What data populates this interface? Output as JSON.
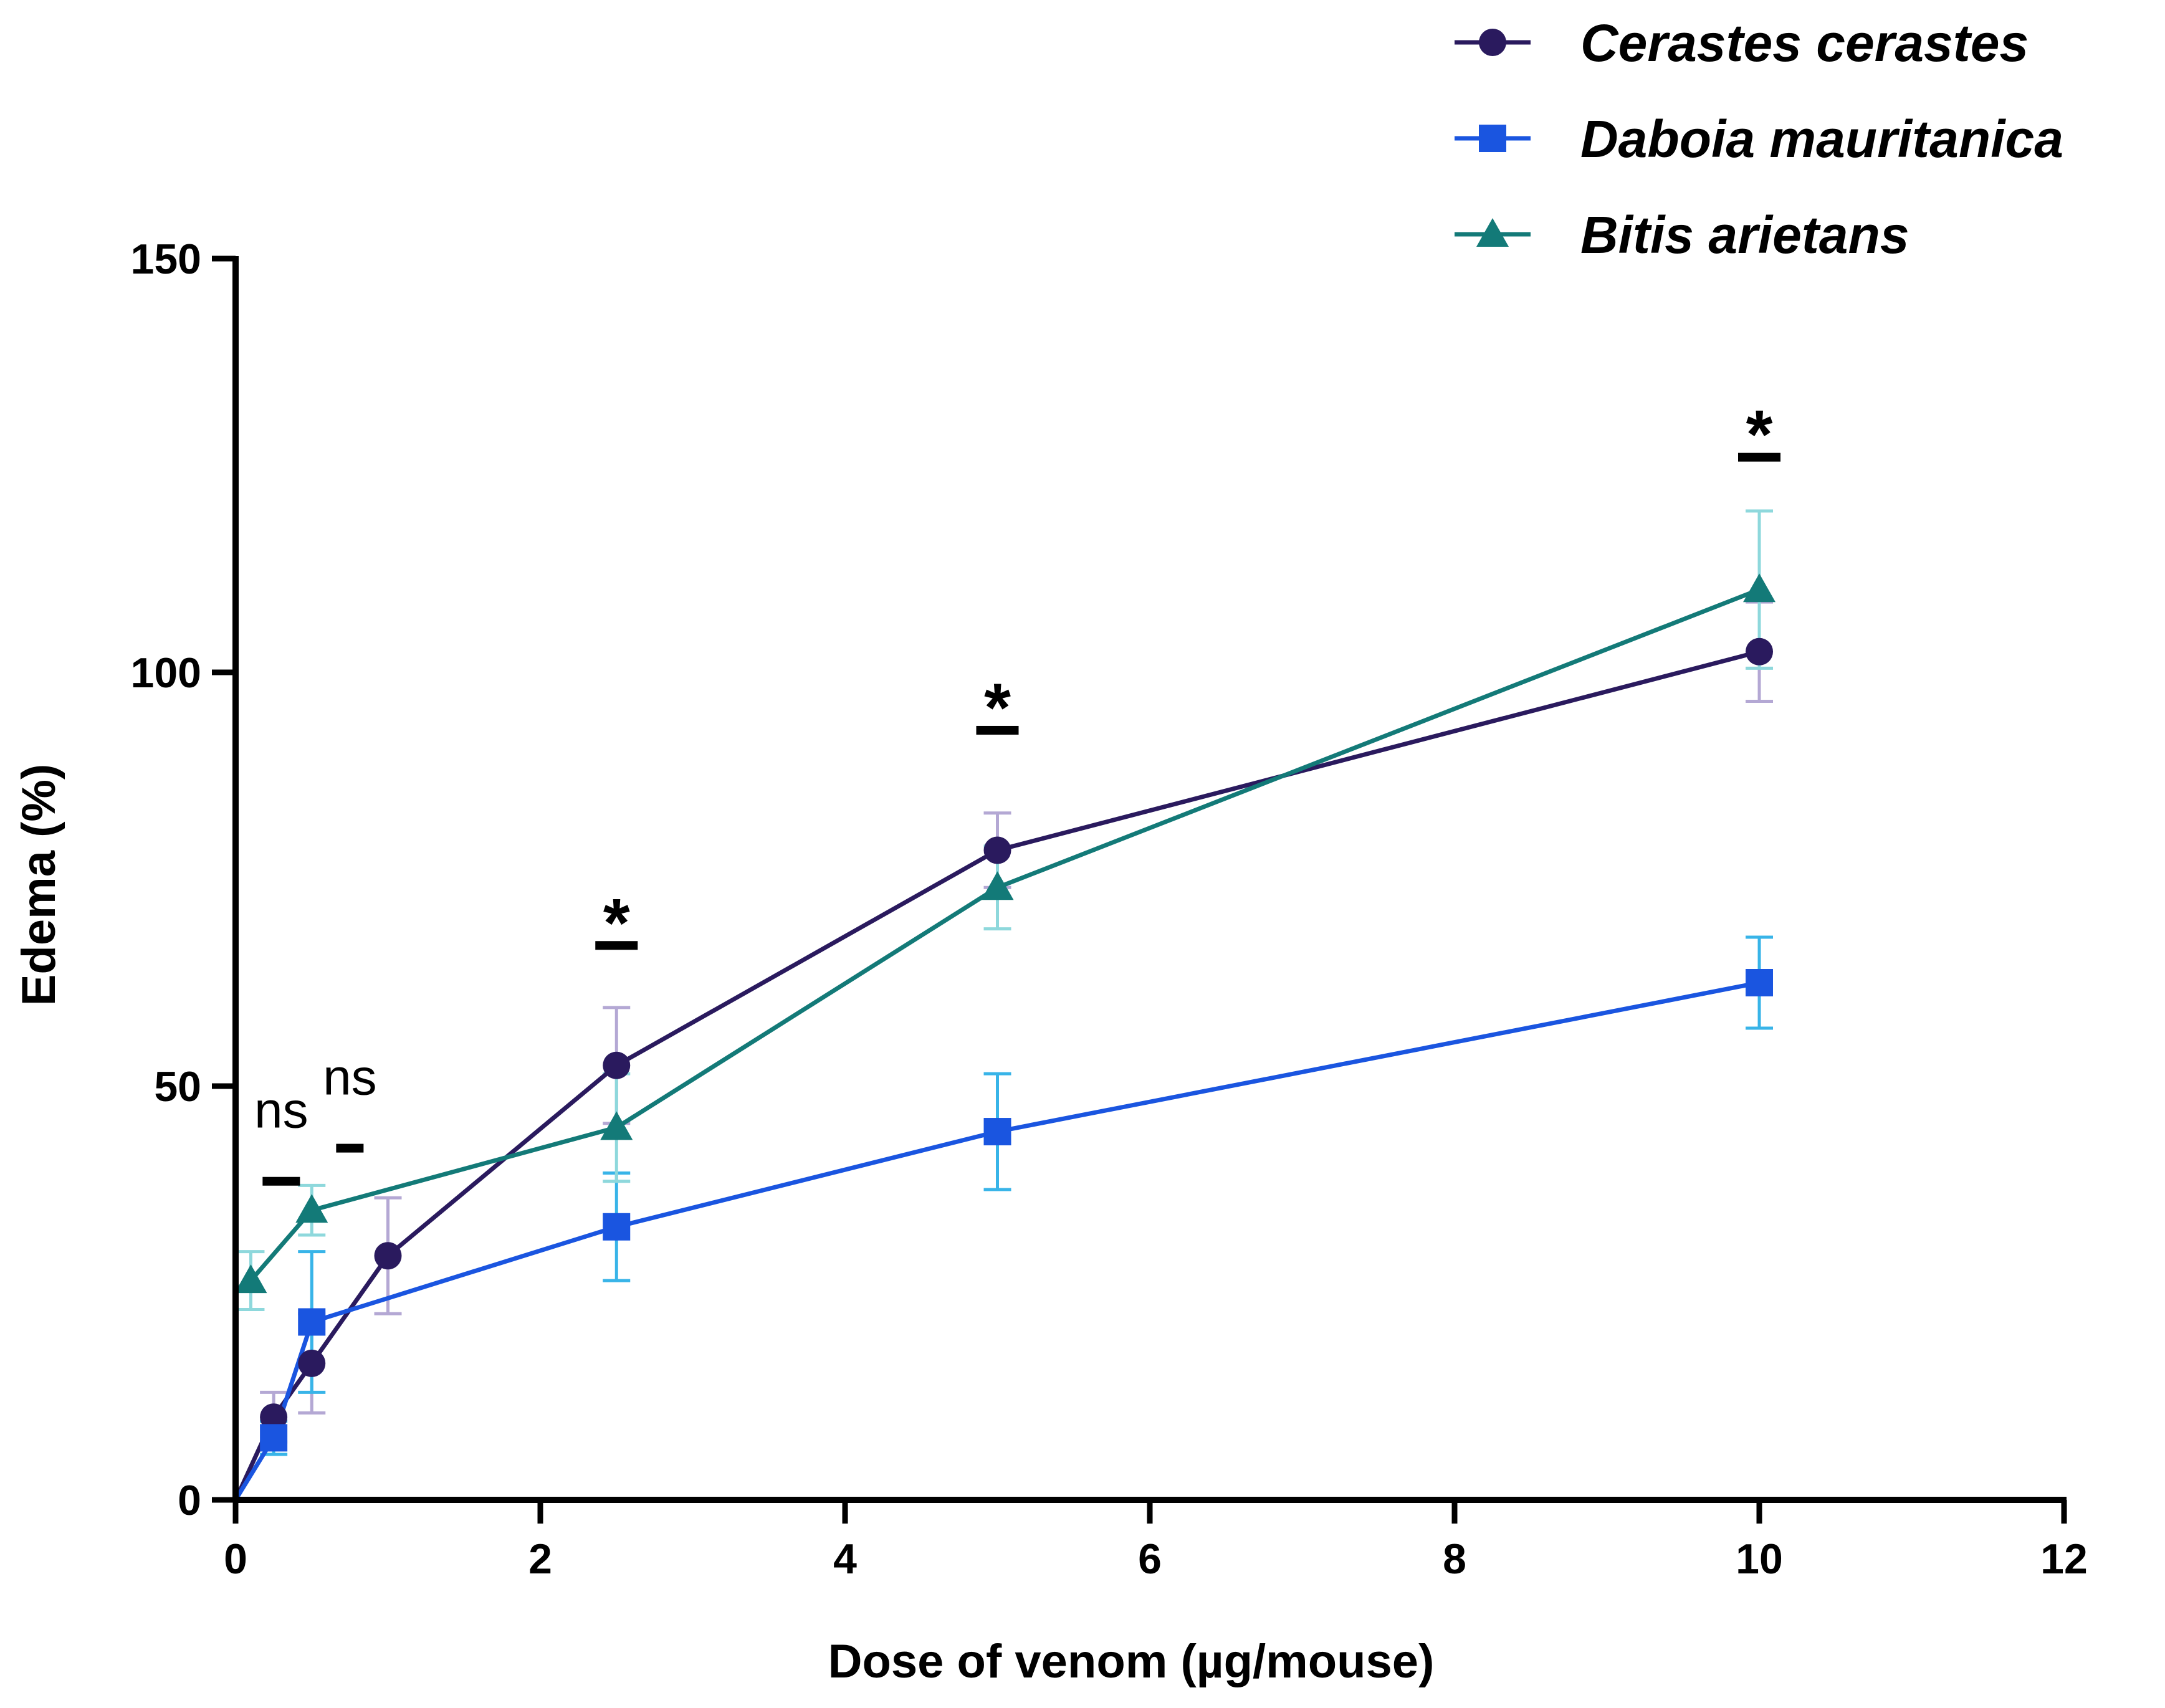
{
  "chart_data": {
    "type": "line",
    "title": "",
    "xlabel": "Dose of venom (µg/mouse)",
    "ylabel": "Edema (%)",
    "xlim": [
      0,
      12
    ],
    "ylim": [
      0,
      150
    ],
    "xticks": [
      0,
      2,
      4,
      6,
      8,
      10,
      12
    ],
    "yticks": [
      0,
      50,
      100,
      150
    ],
    "grid": false,
    "legend_position": "top-right",
    "series": [
      {
        "name": "Cerastes cerastes",
        "color": "#2a1a5e",
        "errorbar_color": "#b4a8d4",
        "marker": "circle",
        "points": [
          {
            "x": 0,
            "y": 0,
            "err": 0
          },
          {
            "x": 0.25,
            "y": 10,
            "err": 3
          },
          {
            "x": 0.5,
            "y": 16.5,
            "err": 6
          },
          {
            "x": 1,
            "y": 29.5,
            "err": 7
          },
          {
            "x": 2.5,
            "y": 52.5,
            "err": 7
          },
          {
            "x": 5,
            "y": 78.5,
            "err": 4.5
          },
          {
            "x": 10,
            "y": 102.5,
            "err": 6
          }
        ]
      },
      {
        "name": "Daboia mauritanica",
        "color": "#1a55e0",
        "errorbar_color": "#38b4e8",
        "marker": "square",
        "points": [
          {
            "x": 0,
            "y": 0,
            "err": 0
          },
          {
            "x": 0.25,
            "y": 7.5,
            "err": 2
          },
          {
            "x": 0.5,
            "y": 21.5,
            "err": 8.5
          },
          {
            "x": 2.5,
            "y": 33,
            "err": 6.5
          },
          {
            "x": 5,
            "y": 44.5,
            "err": 7
          },
          {
            "x": 10,
            "y": 62.5,
            "err": 5.5
          }
        ]
      },
      {
        "name": "Bitis arietans",
        "color": "#137a78",
        "errorbar_color": "#8ed8dc",
        "marker": "triangle",
        "points": [
          {
            "x": 0.1,
            "y": 26.5,
            "err": 3.5
          },
          {
            "x": 0.5,
            "y": 35,
            "err": 3
          },
          {
            "x": 2.5,
            "y": 45,
            "err": 6.5
          },
          {
            "x": 5,
            "y": 74,
            "err": 5
          },
          {
            "x": 10,
            "y": 110,
            "err": 9.5
          }
        ]
      }
    ],
    "annotations": [
      {
        "text": "ns",
        "x": 0.3,
        "y": 45,
        "bar_y": 38.5
      },
      {
        "text": "ns",
        "x": 0.75,
        "y": 49,
        "bar_y": 42.5
      },
      {
        "text": "*",
        "x": 2.5,
        "y": 70.5,
        "bar_y": 67
      },
      {
        "text": "*",
        "x": 5,
        "y": 96.5,
        "bar_y": 93
      },
      {
        "text": "*",
        "x": 10,
        "y": 129.5,
        "bar_y": 126
      }
    ]
  }
}
